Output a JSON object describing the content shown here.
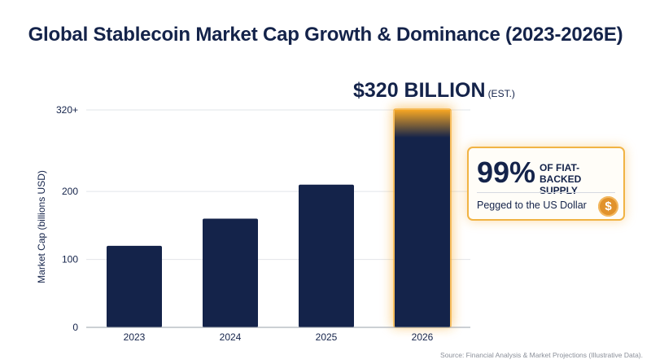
{
  "chart_data": {
    "type": "bar",
    "title": "Global Stablecoin Market Cap Growth & Dominance (2023-2026E)",
    "categories": [
      "2023",
      "2024",
      "2025",
      "2026"
    ],
    "values": [
      120,
      160,
      210,
      320
    ],
    "ylabel": "Market Cap (billions USD)",
    "xlabel": "",
    "ylim": [
      0,
      320
    ],
    "yticks": [
      {
        "value": 0,
        "label": "0"
      },
      {
        "value": 100,
        "label": "100"
      },
      {
        "value": 200,
        "label": "200"
      },
      {
        "value": 320,
        "label": "320+"
      }
    ],
    "grid": true,
    "highlight_category": "2026",
    "colors": {
      "bar": "#14234a",
      "highlight_glow": "#f5a623",
      "grid": "#e2e5ea",
      "axis": "#9aa0aa"
    }
  },
  "callout": {
    "value": "$320 BILLION",
    "suffix": "(EST.)"
  },
  "card": {
    "percent": "99%",
    "label": "OF FIAT-BACKED SUPPLY",
    "subtext": "Pegged to the US Dollar",
    "icon": "dollar-coin-icon",
    "icon_glyph": "$"
  },
  "source": "Source: Financial Analysis & Market Projections (Illustrative Data)."
}
